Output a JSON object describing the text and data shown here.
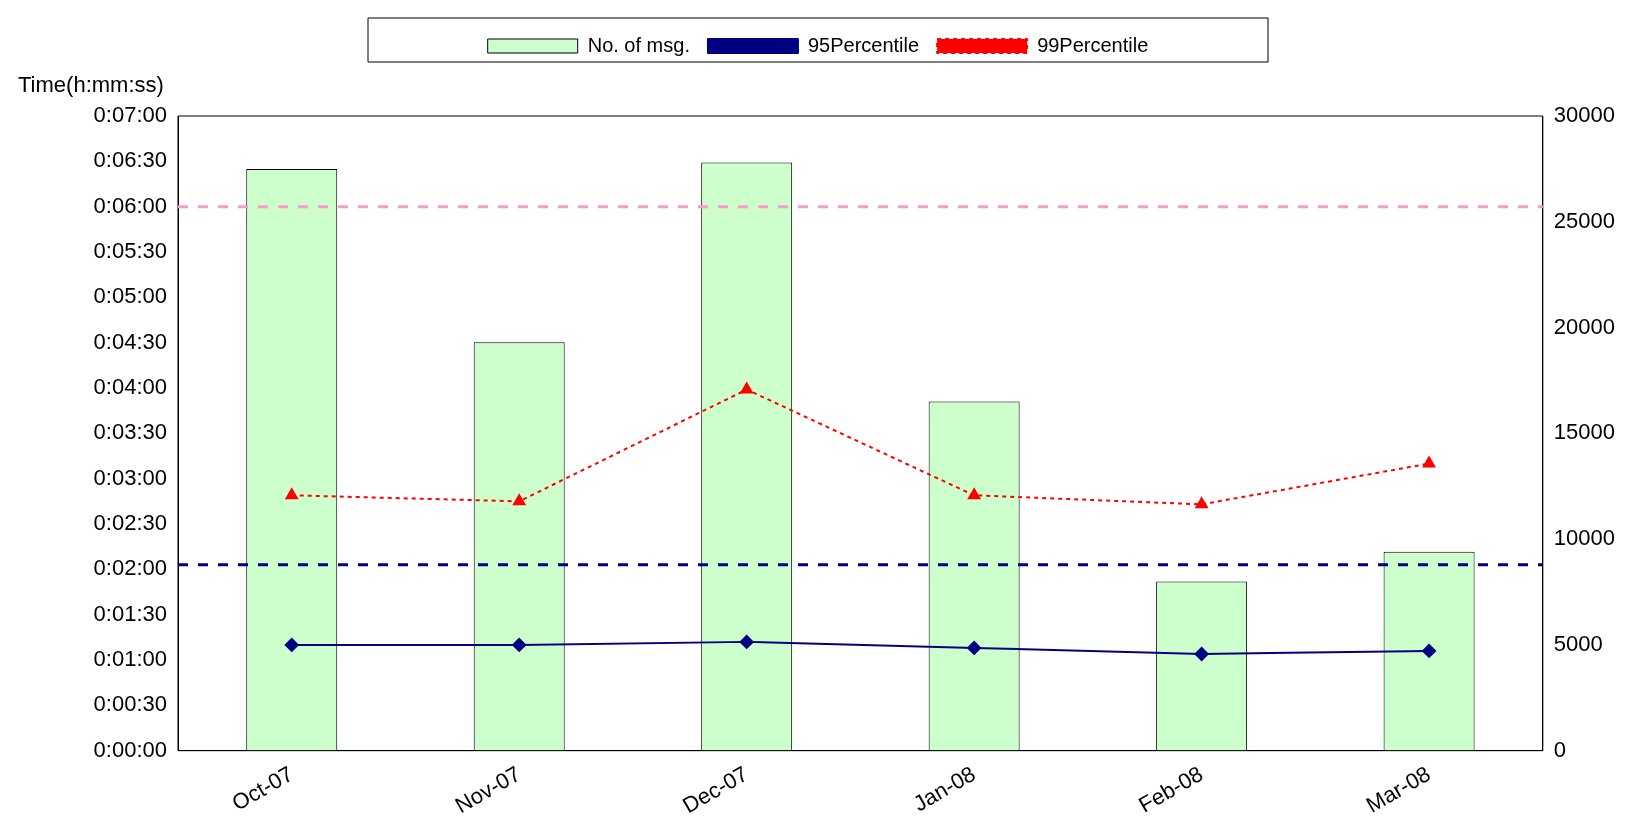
{
  "chart_data": {
    "type": "bar",
    "ylabel": "Time(h:mm:ss)",
    "categories": [
      "Oct-07",
      "Nov-07",
      "Dec-07",
      "Jan-08",
      "Feb-08",
      "Mar-08"
    ],
    "series": [
      {
        "name": "No. of msg.",
        "axis": "y2",
        "color": "#ccffcc",
        "values": [
          27500,
          19300,
          27800,
          16500,
          8000,
          9400
        ]
      },
      {
        "name": "95Percentile",
        "type": "line",
        "axis": "y",
        "color": "#000080",
        "marker": "diamond",
        "line_style": "solid",
        "values": [
          70,
          70,
          72,
          68,
          64,
          66
        ]
      },
      {
        "name": "99Percentile",
        "type": "line",
        "axis": "y",
        "color": "#ff0000",
        "marker": "triangle",
        "line_style": "dashed",
        "values": [
          169,
          165,
          239,
          169,
          163,
          190
        ]
      }
    ],
    "ylim": [
      0,
      420
    ],
    "yticks": [
      {
        "value": 0,
        "label": "0:00:00"
      },
      {
        "value": 30,
        "label": "0:00:30"
      },
      {
        "value": 60,
        "label": "0:01:00"
      },
      {
        "value": 90,
        "label": "0:01:30"
      },
      {
        "value": 120,
        "label": "0:02:00"
      },
      {
        "value": 150,
        "label": "0:02:30"
      },
      {
        "value": 180,
        "label": "0:03:00"
      },
      {
        "value": 210,
        "label": "0:03:30"
      },
      {
        "value": 240,
        "label": "0:04:00"
      },
      {
        "value": 270,
        "label": "0:04:30"
      },
      {
        "value": 300,
        "label": "0:05:00"
      },
      {
        "value": 330,
        "label": "0:05:30"
      },
      {
        "value": 360,
        "label": "0:06:00"
      },
      {
        "value": 390,
        "label": "0:06:30"
      },
      {
        "value": 420,
        "label": "0:07:00"
      }
    ],
    "y2lim": [
      0,
      30000
    ],
    "y2ticks": [
      0,
      5000,
      10000,
      15000,
      20000,
      25000,
      30000
    ],
    "ref_lines": [
      {
        "axis": "y",
        "value": 360,
        "color": "#ff99cc",
        "line_style": "dashed"
      },
      {
        "axis": "y",
        "value": 123,
        "color": "#000080",
        "line_style": "dashed"
      }
    ],
    "grid": false,
    "legend": "top"
  }
}
